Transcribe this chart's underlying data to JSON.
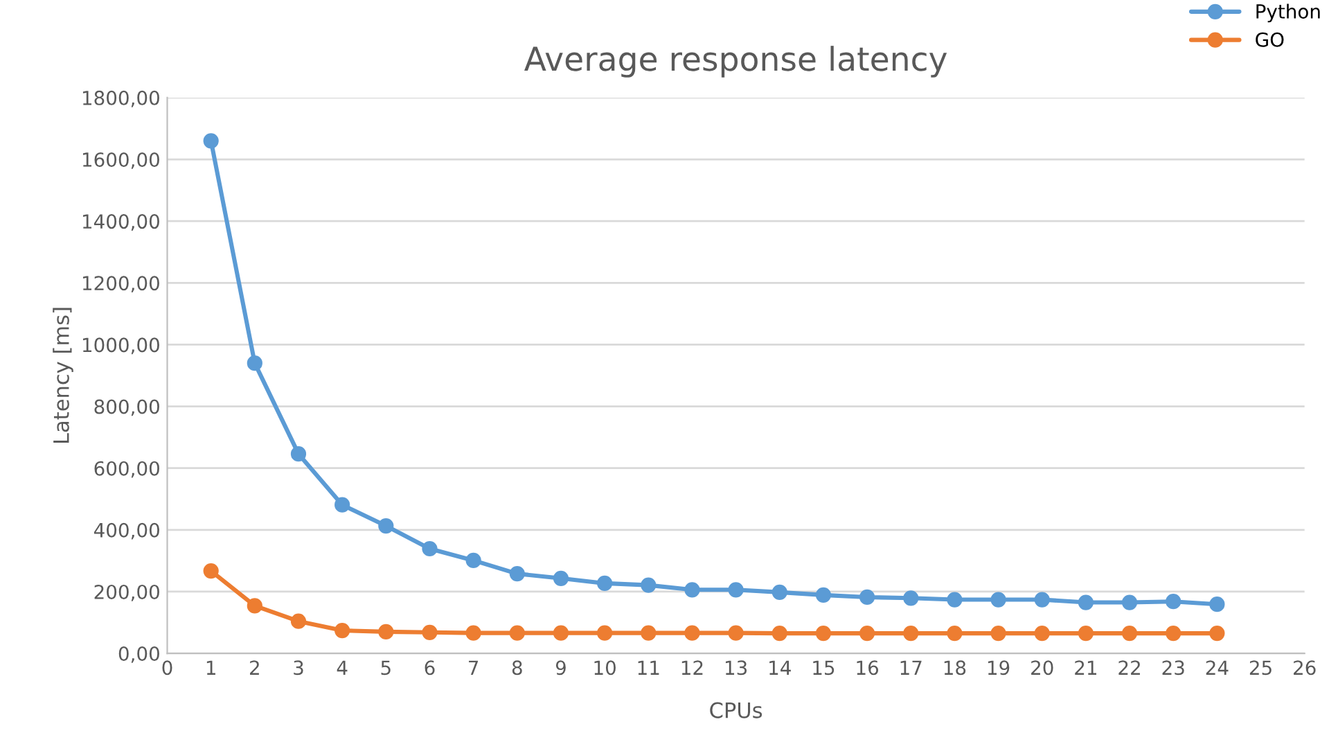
{
  "chart_data": {
    "type": "line",
    "title": "Average response latency",
    "xlabel": "CPUs",
    "ylabel": "Latency [ms]",
    "x": [
      1,
      2,
      3,
      4,
      5,
      6,
      7,
      8,
      9,
      10,
      11,
      12,
      13,
      14,
      15,
      16,
      17,
      18,
      19,
      20,
      21,
      22,
      23,
      24
    ],
    "series": [
      {
        "name": "Python",
        "color": "#5b9bd5",
        "values": [
          1660,
          940,
          646,
          481,
          413,
          339,
          301,
          258,
          243,
          227,
          221,
          206,
          206,
          198,
          189,
          182,
          179,
          174,
          174,
          174,
          165,
          165,
          168,
          159
        ]
      },
      {
        "name": "GO",
        "color": "#ed7d31",
        "values": [
          267,
          154,
          104,
          74,
          70,
          68,
          66,
          66,
          66,
          66,
          66,
          66,
          66,
          65,
          65,
          65,
          65,
          65,
          65,
          65,
          65,
          65,
          65,
          65
        ]
      }
    ],
    "xlim": [
      0,
      26
    ],
    "xticks": [
      0,
      1,
      2,
      3,
      4,
      5,
      6,
      7,
      8,
      9,
      10,
      11,
      12,
      13,
      14,
      15,
      16,
      17,
      18,
      19,
      20,
      21,
      22,
      23,
      24,
      25,
      26
    ],
    "ylim": [
      0,
      1800
    ],
    "yticks": [
      {
        "value": 0,
        "label": "0,00"
      },
      {
        "value": 200,
        "label": "200,00"
      },
      {
        "value": 400,
        "label": "400,00"
      },
      {
        "value": 600,
        "label": "600,00"
      },
      {
        "value": 800,
        "label": "800,00"
      },
      {
        "value": 1000,
        "label": "1000,00"
      },
      {
        "value": 1200,
        "label": "1200,00"
      },
      {
        "value": 1400,
        "label": "1400,00"
      },
      {
        "value": 1600,
        "label": "1600,00"
      },
      {
        "value": 1800,
        "label": "1800,00"
      }
    ],
    "grid": "y",
    "legend": "top right",
    "marker": "circle",
    "line_style": "solid"
  }
}
